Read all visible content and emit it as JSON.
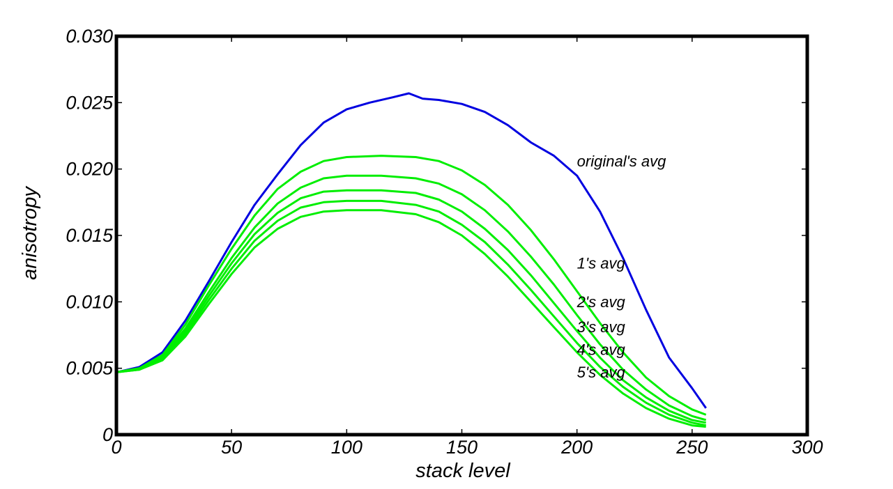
{
  "chart_data": {
    "type": "line",
    "title": "",
    "xlabel": "stack level",
    "ylabel": "anisotropy",
    "xlim": [
      0,
      300
    ],
    "ylim": [
      0,
      0.03
    ],
    "xticks": [
      0,
      50,
      100,
      150,
      200,
      250,
      300
    ],
    "xtick_labels": [
      "0",
      "50",
      "100",
      "150",
      "200",
      "250",
      "300"
    ],
    "yticks": [
      0,
      0.005,
      0.01,
      0.015,
      0.02,
      0.025,
      0.03
    ],
    "ytick_labels": [
      "0",
      "0.005",
      "0.010",
      "0.015",
      "0.020",
      "0.025",
      "0.030"
    ],
    "grid": false,
    "series": [
      {
        "name": "original's avg",
        "label": "original's avg",
        "color": "#0000e0",
        "label_at": [
          200,
          0.0202
        ],
        "points": [
          [
            0,
            0.0047
          ],
          [
            10,
            0.0051
          ],
          [
            20,
            0.0062
          ],
          [
            30,
            0.0086
          ],
          [
            40,
            0.0115
          ],
          [
            50,
            0.0145
          ],
          [
            60,
            0.0173
          ],
          [
            70,
            0.0196
          ],
          [
            80,
            0.0218
          ],
          [
            90,
            0.0235
          ],
          [
            100,
            0.0245
          ],
          [
            110,
            0.025
          ],
          [
            120,
            0.0254
          ],
          [
            127,
            0.0257
          ],
          [
            133,
            0.0253
          ],
          [
            140,
            0.0252
          ],
          [
            150,
            0.0249
          ],
          [
            160,
            0.0243
          ],
          [
            170,
            0.0233
          ],
          [
            180,
            0.022
          ],
          [
            190,
            0.021
          ],
          [
            200,
            0.0195
          ],
          [
            210,
            0.0168
          ],
          [
            220,
            0.0133
          ],
          [
            230,
            0.0094
          ],
          [
            240,
            0.0058
          ],
          [
            250,
            0.0035
          ],
          [
            256,
            0.002
          ]
        ]
      },
      {
        "name": "1's avg",
        "label": "1's avg",
        "color": "#00ee00",
        "label_at": [
          200,
          0.0125
        ],
        "points": [
          [
            0,
            0.0047
          ],
          [
            10,
            0.005
          ],
          [
            20,
            0.006
          ],
          [
            30,
            0.0083
          ],
          [
            40,
            0.0112
          ],
          [
            50,
            0.014
          ],
          [
            60,
            0.0165
          ],
          [
            70,
            0.0185
          ],
          [
            80,
            0.0198
          ],
          [
            90,
            0.0206
          ],
          [
            100,
            0.0209
          ],
          [
            115,
            0.021
          ],
          [
            130,
            0.0209
          ],
          [
            140,
            0.0206
          ],
          [
            150,
            0.0199
          ],
          [
            160,
            0.0188
          ],
          [
            170,
            0.0173
          ],
          [
            180,
            0.0154
          ],
          [
            190,
            0.0132
          ],
          [
            200,
            0.0108
          ],
          [
            210,
            0.0084
          ],
          [
            220,
            0.0062
          ],
          [
            230,
            0.0043
          ],
          [
            240,
            0.0029
          ],
          [
            250,
            0.0019
          ],
          [
            256,
            0.0015
          ]
        ]
      },
      {
        "name": "2's avg",
        "label": "2's avg",
        "color": "#00ee00",
        "label_at": [
          200,
          0.0096
        ],
        "points": [
          [
            0,
            0.0047
          ],
          [
            10,
            0.005
          ],
          [
            20,
            0.0059
          ],
          [
            30,
            0.008
          ],
          [
            40,
            0.0107
          ],
          [
            50,
            0.0133
          ],
          [
            60,
            0.0156
          ],
          [
            70,
            0.0174
          ],
          [
            80,
            0.0186
          ],
          [
            90,
            0.0193
          ],
          [
            100,
            0.0195
          ],
          [
            115,
            0.0195
          ],
          [
            130,
            0.0193
          ],
          [
            140,
            0.0189
          ],
          [
            150,
            0.0181
          ],
          [
            160,
            0.0169
          ],
          [
            170,
            0.0153
          ],
          [
            180,
            0.0134
          ],
          [
            190,
            0.0113
          ],
          [
            200,
            0.009
          ],
          [
            210,
            0.0068
          ],
          [
            220,
            0.0049
          ],
          [
            230,
            0.0034
          ],
          [
            240,
            0.0022
          ],
          [
            250,
            0.0014
          ],
          [
            256,
            0.0011
          ]
        ]
      },
      {
        "name": "3's avg",
        "label": "3's avg",
        "color": "#00ee00",
        "label_at": [
          200,
          0.0077
        ],
        "points": [
          [
            0,
            0.0047
          ],
          [
            10,
            0.005
          ],
          [
            20,
            0.0058
          ],
          [
            30,
            0.0078
          ],
          [
            40,
            0.0104
          ],
          [
            50,
            0.0129
          ],
          [
            60,
            0.0151
          ],
          [
            70,
            0.0167
          ],
          [
            80,
            0.0178
          ],
          [
            90,
            0.0183
          ],
          [
            100,
            0.0184
          ],
          [
            115,
            0.0184
          ],
          [
            130,
            0.0182
          ],
          [
            140,
            0.0177
          ],
          [
            150,
            0.0168
          ],
          [
            160,
            0.0155
          ],
          [
            170,
            0.0139
          ],
          [
            180,
            0.012
          ],
          [
            190,
            0.0099
          ],
          [
            200,
            0.0078
          ],
          [
            210,
            0.0058
          ],
          [
            220,
            0.0041
          ],
          [
            230,
            0.0028
          ],
          [
            240,
            0.0018
          ],
          [
            250,
            0.0011
          ],
          [
            256,
            0.0009
          ]
        ]
      },
      {
        "name": "4's avg",
        "label": "4's avg",
        "color": "#00ee00",
        "label_at": [
          200,
          0.006
        ],
        "points": [
          [
            0,
            0.0047
          ],
          [
            10,
            0.0049
          ],
          [
            20,
            0.0057
          ],
          [
            30,
            0.0076
          ],
          [
            40,
            0.0101
          ],
          [
            50,
            0.0125
          ],
          [
            60,
            0.0146
          ],
          [
            70,
            0.0161
          ],
          [
            80,
            0.0171
          ],
          [
            90,
            0.0175
          ],
          [
            100,
            0.0176
          ],
          [
            115,
            0.0176
          ],
          [
            130,
            0.0173
          ],
          [
            140,
            0.0168
          ],
          [
            150,
            0.0158
          ],
          [
            160,
            0.0145
          ],
          [
            170,
            0.0128
          ],
          [
            180,
            0.0109
          ],
          [
            190,
            0.0089
          ],
          [
            200,
            0.0069
          ],
          [
            210,
            0.0051
          ],
          [
            220,
            0.0036
          ],
          [
            230,
            0.0024
          ],
          [
            240,
            0.0015
          ],
          [
            250,
            0.0009
          ],
          [
            256,
            0.0007
          ]
        ]
      },
      {
        "name": "5's avg",
        "label": "5's avg",
        "color": "#00ee00",
        "label_at": [
          200,
          0.0043
        ],
        "points": [
          [
            0,
            0.0047
          ],
          [
            10,
            0.0049
          ],
          [
            20,
            0.0056
          ],
          [
            30,
            0.0074
          ],
          [
            40,
            0.0098
          ],
          [
            50,
            0.0121
          ],
          [
            60,
            0.0141
          ],
          [
            70,
            0.0155
          ],
          [
            80,
            0.0164
          ],
          [
            90,
            0.0168
          ],
          [
            100,
            0.0169
          ],
          [
            115,
            0.0169
          ],
          [
            130,
            0.0166
          ],
          [
            140,
            0.016
          ],
          [
            150,
            0.015
          ],
          [
            160,
            0.0136
          ],
          [
            170,
            0.0119
          ],
          [
            180,
            0.01
          ],
          [
            190,
            0.0081
          ],
          [
            200,
            0.0062
          ],
          [
            210,
            0.0045
          ],
          [
            220,
            0.0031
          ],
          [
            230,
            0.002
          ],
          [
            240,
            0.0012
          ],
          [
            250,
            0.0007
          ],
          [
            256,
            0.0006
          ]
        ]
      }
    ]
  }
}
